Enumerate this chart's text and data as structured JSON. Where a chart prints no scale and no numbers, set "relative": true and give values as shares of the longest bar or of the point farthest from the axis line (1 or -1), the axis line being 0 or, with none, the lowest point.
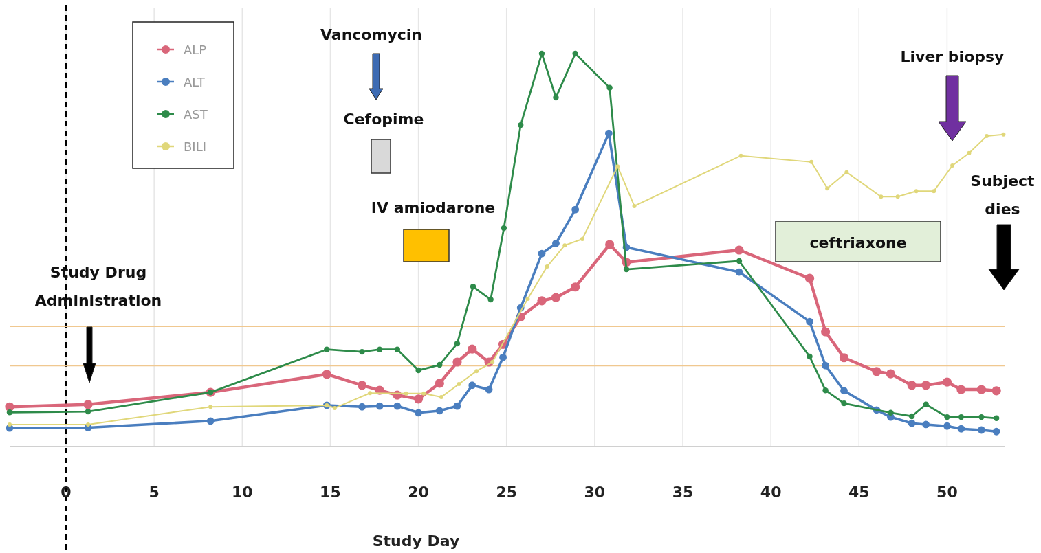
{
  "chart_data": {
    "type": "line",
    "relative": true,
    "xlabel": "Study Day",
    "xlim": [
      -3.2,
      53.3
    ],
    "xticks": [
      0,
      5,
      10,
      15,
      20,
      25,
      30,
      35,
      40,
      45,
      50
    ],
    "grid": "x",
    "legend": "top left",
    "marker": "circle",
    "line_style": "solid",
    "annotations": [
      "Vancomycin",
      "Cefopime",
      "IV amiodarone",
      "ceftriaxone",
      "Liver biopsy",
      "Subject dies",
      "Study Drug Administration"
    ],
    "ref_lines": [
      {
        "axis": "x",
        "value": 0,
        "color": "#000000",
        "line_style": "dashed"
      },
      {
        "axis": "y",
        "value": 0.306,
        "color": "#f0c890"
      },
      {
        "axis": "y",
        "value": 0.206,
        "color": "#f0c890"
      }
    ],
    "series": [
      {
        "name": "ALP",
        "color": "#d9667a",
        "x": [
          -3.2,
          1.25,
          8.2,
          14.8,
          16.8,
          17.8,
          18.8,
          20.0,
          21.2,
          22.2,
          23.05,
          24.0,
          24.8,
          25.8,
          27.0,
          27.8,
          28.9,
          30.85,
          31.8,
          38.2,
          42.2,
          43.1,
          44.15,
          46.0,
          46.8,
          48.0,
          48.8,
          50.0,
          50.8,
          51.95,
          52.8
        ],
        "values": [
          0.101,
          0.107,
          0.138,
          0.184,
          0.156,
          0.143,
          0.131,
          0.121,
          0.161,
          0.215,
          0.248,
          0.215,
          0.26,
          0.33,
          0.371,
          0.379,
          0.406,
          0.514,
          0.469,
          0.5,
          0.428,
          0.292,
          0.226,
          0.191,
          0.185,
          0.156,
          0.156,
          0.164,
          0.145,
          0.145,
          0.142
        ]
      },
      {
        "name": "ALT",
        "color": "#4a7ebf",
        "x": [
          -3.2,
          1.25,
          8.2,
          14.8,
          16.8,
          17.8,
          18.8,
          20.0,
          21.2,
          22.2,
          23.05,
          24.0,
          24.8,
          25.8,
          27.0,
          27.8,
          28.9,
          30.8,
          31.8,
          38.2,
          42.2,
          43.1,
          44.15,
          46.0,
          46.8,
          48.0,
          48.8,
          50.0,
          50.8,
          51.95,
          52.8
        ],
        "values": [
          0.047,
          0.048,
          0.065,
          0.105,
          0.101,
          0.103,
          0.103,
          0.086,
          0.091,
          0.103,
          0.156,
          0.145,
          0.227,
          0.353,
          0.491,
          0.517,
          0.603,
          0.797,
          0.507,
          0.444,
          0.318,
          0.206,
          0.142,
          0.093,
          0.075,
          0.059,
          0.056,
          0.052,
          0.045,
          0.042,
          0.038
        ]
      },
      {
        "name": "AST",
        "color": "#2e8b4a",
        "x": [
          -3.2,
          1.25,
          8.2,
          14.8,
          16.8,
          17.8,
          18.8,
          20.0,
          21.2,
          22.2,
          23.1,
          24.1,
          24.85,
          25.8,
          27.0,
          27.8,
          28.9,
          30.85,
          31.8,
          38.2,
          42.2,
          43.1,
          44.15,
          46.8,
          48.0,
          48.8,
          50.0,
          50.8,
          51.95,
          52.8
        ],
        "values": [
          0.087,
          0.089,
          0.138,
          0.247,
          0.241,
          0.247,
          0.247,
          0.194,
          0.208,
          0.262,
          0.407,
          0.374,
          0.556,
          0.818,
          1,
          0.888,
          1,
          0.913,
          0.451,
          0.472,
          0.229,
          0.143,
          0.11,
          0.086,
          0.077,
          0.107,
          0.075,
          0.075,
          0.075,
          0.072
        ]
      },
      {
        "name": "BILI",
        "color": "#e0d77a",
        "x": [
          -3.2,
          1.25,
          8.2,
          14.8,
          15.25,
          17.25,
          19.3,
          20.3,
          21.3,
          22.3,
          23.3,
          24.2,
          26.2,
          27.3,
          28.3,
          29.3,
          31.3,
          32.25,
          38.3,
          42.3,
          43.2,
          44.3,
          46.25,
          47.2,
          48.25,
          49.25,
          50.3,
          51.25,
          52.25,
          53.2
        ],
        "values": [
          0.056,
          0.056,
          0.101,
          0.105,
          0.098,
          0.136,
          0.135,
          0.135,
          0.126,
          0.159,
          0.192,
          0.215,
          0.376,
          0.458,
          0.512,
          0.528,
          0.713,
          0.612,
          0.74,
          0.724,
          0.657,
          0.698,
          0.636,
          0.636,
          0.65,
          0.65,
          0.715,
          0.747,
          0.79,
          0.794
        ]
      }
    ]
  }
}
